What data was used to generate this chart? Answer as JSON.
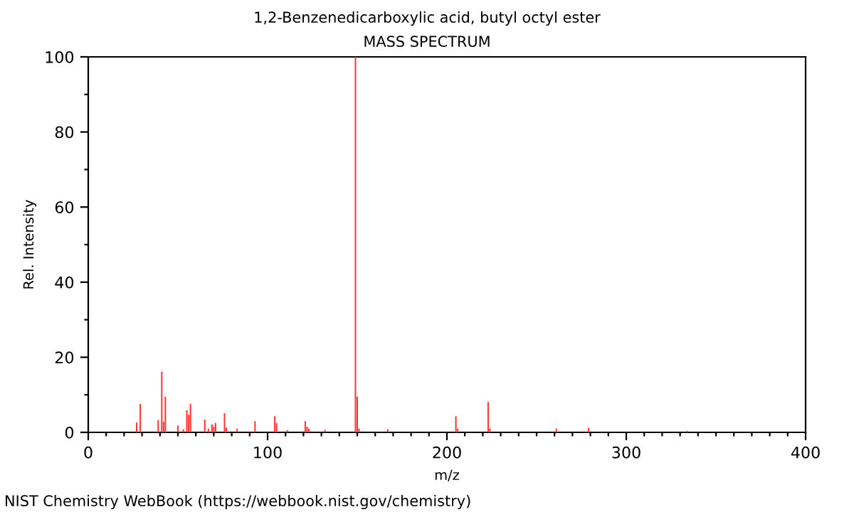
{
  "chart_data": {
    "type": "bar",
    "title": "1,2-Benzenedicarboxylic acid, butyl octyl ester",
    "subtitle": "MASS SPECTRUM",
    "xlabel": "m/z",
    "ylabel": "Rel. Intensity",
    "annotations": [
      "NIST Chemistry WebBook (https://webbook.nist.gov/chemistry)"
    ],
    "x": [
      27,
      29,
      39,
      41,
      42,
      43,
      50,
      53,
      55,
      56,
      57,
      65,
      67,
      69,
      70,
      71,
      76,
      77,
      83,
      93,
      104,
      105,
      111,
      121,
      122,
      123,
      132,
      149,
      150,
      151,
      167,
      205,
      206,
      223,
      224,
      261,
      279,
      334
    ],
    "values": [
      2.6,
      7.6,
      3.3,
      16.2,
      2.8,
      9.5,
      1.8,
      0.8,
      5.9,
      4.7,
      7.6,
      3.4,
      1.0,
      2.1,
      1.5,
      2.5,
      5.1,
      1.2,
      1.0,
      3.0,
      4.3,
      2.5,
      0.6,
      3.0,
      1.5,
      1.0,
      0.7,
      100,
      9.5,
      1.0,
      0.8,
      4.3,
      1.0,
      8.1,
      1.0,
      1.0,
      1.2,
      0.4
    ],
    "color": "#ff3333",
    "xlim": [
      0,
      400
    ],
    "xticks": [
      0,
      {
        "value": 10,
        "label": null
      },
      {
        "value": 20,
        "label": null
      },
      {
        "value": 30,
        "label": null
      },
      {
        "value": 40,
        "label": null
      },
      {
        "value": 50,
        "label": null
      },
      {
        "value": 60,
        "label": null
      },
      {
        "value": 70,
        "label": null
      },
      {
        "value": 80,
        "label": null
      },
      {
        "value": 90,
        "label": null
      },
      100,
      {
        "value": 110,
        "label": null
      },
      {
        "value": 120,
        "label": null
      },
      {
        "value": 130,
        "label": null
      },
      {
        "value": 140,
        "label": null
      },
      {
        "value": 150,
        "label": null
      },
      {
        "value": 160,
        "label": null
      },
      {
        "value": 170,
        "label": null
      },
      {
        "value": 180,
        "label": null
      },
      {
        "value": 190,
        "label": null
      },
      200,
      {
        "value": 210,
        "label": null
      },
      {
        "value": 220,
        "label": null
      },
      {
        "value": 230,
        "label": null
      },
      {
        "value": 240,
        "label": null
      },
      {
        "value": 250,
        "label": null
      },
      {
        "value": 260,
        "label": null
      },
      {
        "value": 270,
        "label": null
      },
      {
        "value": 280,
        "label": null
      },
      {
        "value": 290,
        "label": null
      },
      300,
      {
        "value": 310,
        "label": null
      },
      {
        "value": 320,
        "label": null
      },
      {
        "value": 330,
        "label": null
      },
      {
        "value": 340,
        "label": null
      },
      {
        "value": 350,
        "label": null
      },
      {
        "value": 360,
        "label": null
      },
      {
        "value": 370,
        "label": null
      },
      {
        "value": 380,
        "label": null
      },
      {
        "value": 390,
        "label": null
      },
      400
    ],
    "ylim": [
      0,
      100
    ],
    "yticks": [
      0,
      {
        "value": 10,
        "label": null
      },
      20,
      {
        "value": 30,
        "label": null
      },
      40,
      {
        "value": 50,
        "label": null
      },
      60,
      {
        "value": 70,
        "label": null
      },
      80,
      {
        "value": 90,
        "label": null
      },
      100
    ],
    "grid": false,
    "legend": false
  }
}
